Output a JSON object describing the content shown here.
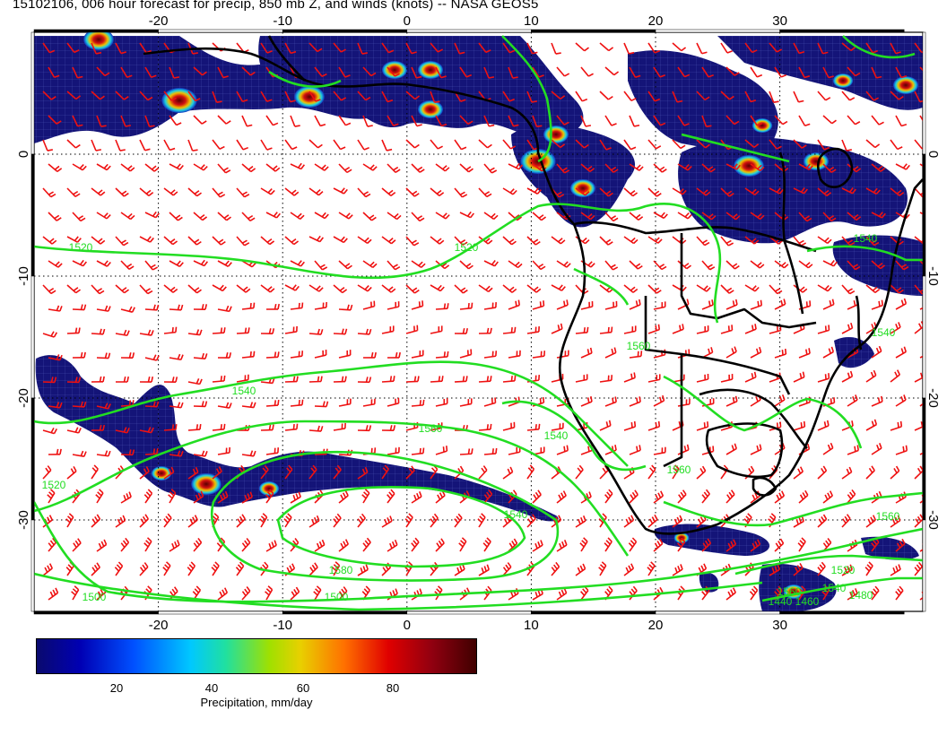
{
  "title": "15102106, 006 hour forecast for precip, 850 mb Z, and winds (knots) -- NASA GEOS5",
  "axes": {
    "x_ticks": [
      "-20",
      "-10",
      "0",
      "10",
      "20",
      "30"
    ],
    "y_ticks_left": [
      "0",
      "-10",
      "-20",
      "-30"
    ],
    "y_ticks_right": [
      "0",
      "-10",
      "-20",
      "-30"
    ]
  },
  "contour_labels": [
    "1520",
    "1520",
    "1540",
    "1560",
    "1540",
    "1560",
    "1540",
    "1560",
    "1540",
    "1580",
    "1560",
    "1540",
    "1520",
    "1500",
    "1520",
    "1540",
    "1560",
    "1500",
    "1480",
    "1460",
    "1440"
  ],
  "colorbar": {
    "ticks": [
      "20",
      "40",
      "60",
      "80"
    ],
    "label": "Precipitation, mm/day"
  },
  "colors": {
    "contour": "#22dd22",
    "wind_barbs": "#ee1111",
    "coast": "#000000",
    "precip_low": "#141478",
    "precip_high": "#8b0000"
  }
}
